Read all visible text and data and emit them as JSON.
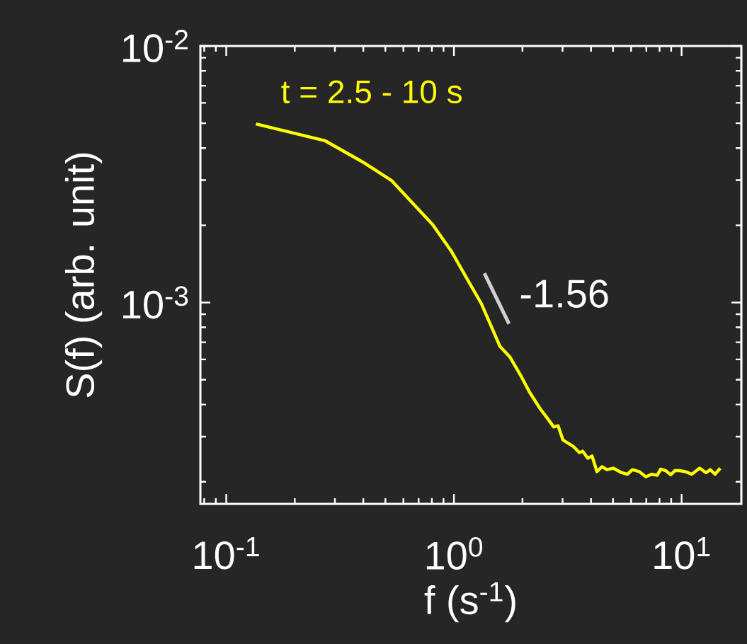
{
  "chart_data": {
    "type": "line",
    "xlabel": "f (s$^{-1}$)",
    "ylabel": "S(f) (arb. unit)",
    "log": "xy",
    "xlim": [
      0.077,
      18.3
    ],
    "ylim": [
      0.000164,
      0.01
    ],
    "xticks": [
      {
        "value": 0.1,
        "label": "10$^{-1}$"
      },
      {
        "value": 1,
        "label": "10$^{0}$"
      },
      {
        "value": 10,
        "label": "10$^{1}$"
      }
    ],
    "yticks": [
      {
        "value": 0.001,
        "label": "10$^{-3}$"
      },
      {
        "value": 0.01,
        "label": "10$^{-2}$"
      }
    ],
    "series": [
      {
        "name": "t = 2.5 - 10 s",
        "color": "#ffff00",
        "x": [
          0.135,
          0.272,
          0.4,
          0.532,
          0.807,
          0.972,
          1.146,
          1.322,
          1.451,
          1.592,
          1.762,
          1.959,
          2.152,
          2.394,
          2.554,
          2.745,
          2.866,
          3.013,
          3.356,
          3.554,
          3.683,
          3.872,
          4.043,
          4.249,
          4.467,
          4.697,
          5.01,
          5.459,
          5.78,
          6.08,
          6.531,
          6.966,
          7.38,
          7.813,
          8.093,
          8.511,
          8.954,
          9.339,
          9.82,
          10.4,
          11.09,
          12.0,
          12.8,
          13.36,
          14.03,
          14.79
        ],
        "values": [
          0.00497,
          0.00427,
          0.00352,
          0.00299,
          0.00201,
          0.00159,
          0.00123,
          0.000987,
          0.000816,
          0.000675,
          0.000613,
          0.000522,
          0.000446,
          0.000385,
          0.000357,
          0.000327,
          0.000331,
          0.000291,
          0.000274,
          0.00026,
          0.000263,
          0.000247,
          0.000252,
          0.000219,
          0.000229,
          0.000223,
          0.000226,
          0.000217,
          0.000214,
          0.000223,
          0.000219,
          0.000209,
          0.000214,
          0.000212,
          0.000224,
          0.000221,
          0.000213,
          0.000221,
          0.000221,
          0.000219,
          0.000214,
          0.000226,
          0.000217,
          0.000223,
          0.000214,
          0.000226
        ]
      },
      {
        "name": "-1.56",
        "color": "#d0d0d0",
        "x": [
          1.361,
          1.746
        ],
        "values": [
          0.0013,
          0.000826
        ]
      }
    ]
  }
}
